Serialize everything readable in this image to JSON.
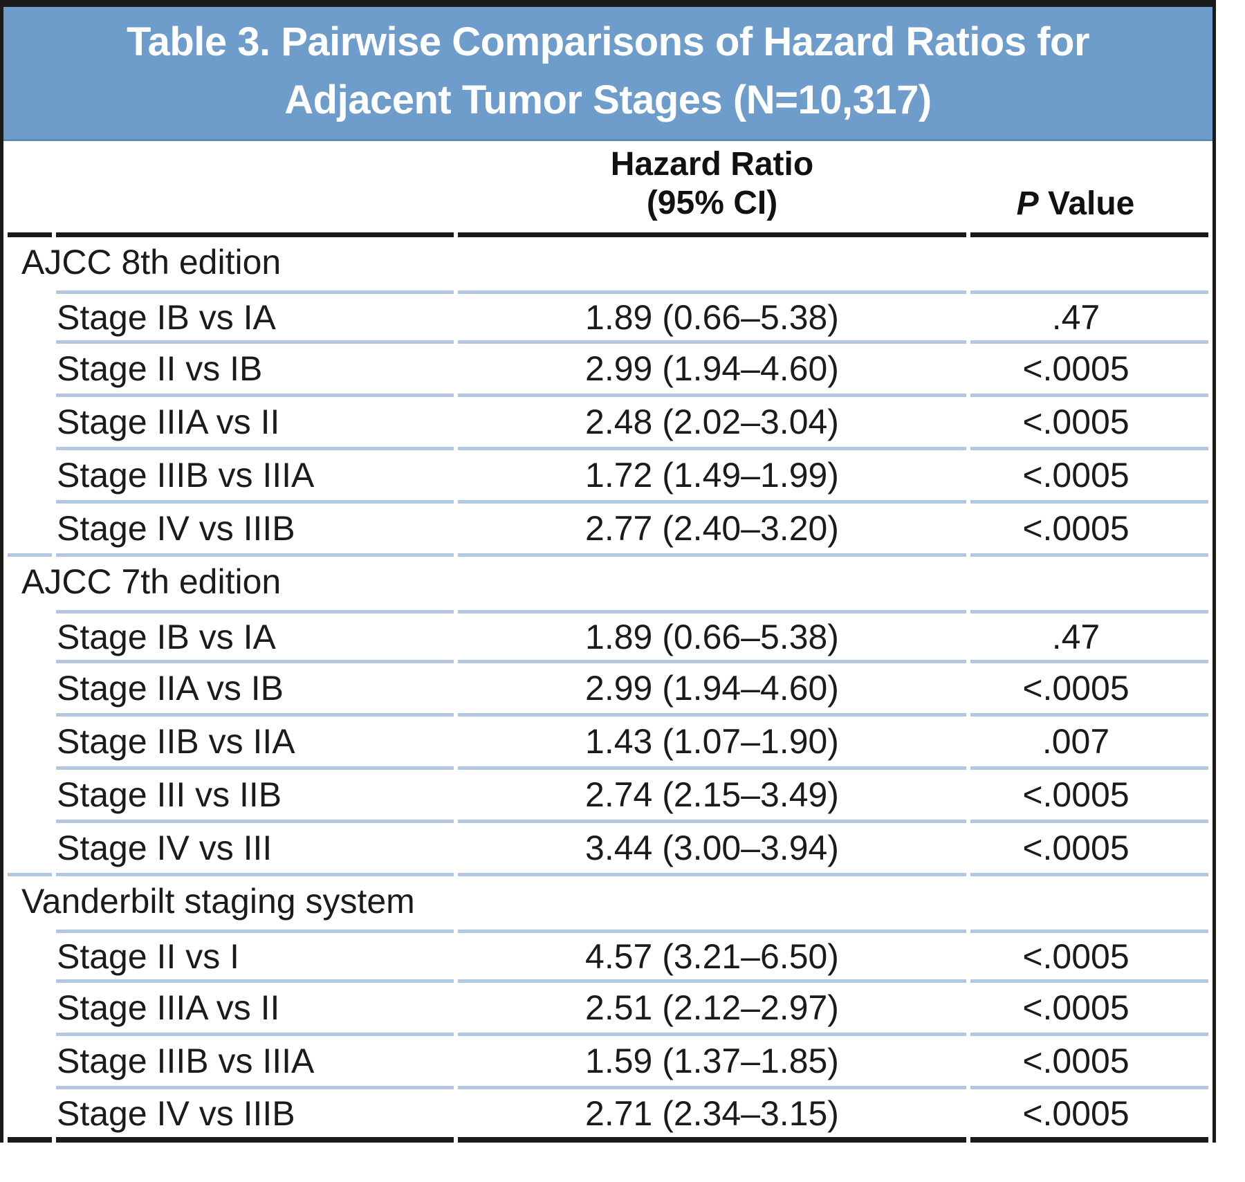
{
  "table": {
    "title_lines": [
      "Table 3. Pairwise Comparisons of Hazard Ratios for",
      "Adjacent Tumor Stages (N=10,317)"
    ],
    "columns": {
      "hazard_ratio_line1": "Hazard Ratio",
      "hazard_ratio_line2": "(95% CI)",
      "p_value_italic": "P",
      "p_value_rest": " Value"
    },
    "sections": [
      {
        "label": "AJCC 8th edition",
        "rows": [
          {
            "comparison": "Stage IB vs IA",
            "hazard_ratio": "1.89 (0.66–5.38)",
            "p_value": ".47"
          },
          {
            "comparison": "Stage II vs IB",
            "hazard_ratio": "2.99 (1.94–4.60)",
            "p_value": "<.0005"
          },
          {
            "comparison": "Stage IIIA vs II",
            "hazard_ratio": "2.48 (2.02–3.04)",
            "p_value": "<.0005"
          },
          {
            "comparison": "Stage IIIB vs IIIA",
            "hazard_ratio": "1.72 (1.49–1.99)",
            "p_value": "<.0005"
          },
          {
            "comparison": "Stage IV vs IIIB",
            "hazard_ratio": "2.77 (2.40–3.20)",
            "p_value": "<.0005"
          }
        ]
      },
      {
        "label": "AJCC 7th edition",
        "rows": [
          {
            "comparison": "Stage IB vs IA",
            "hazard_ratio": "1.89 (0.66–5.38)",
            "p_value": ".47"
          },
          {
            "comparison": "Stage IIA vs IB",
            "hazard_ratio": "2.99 (1.94–4.60)",
            "p_value": "<.0005"
          },
          {
            "comparison": "Stage IIB vs IIA",
            "hazard_ratio": "1.43 (1.07–1.90)",
            "p_value": ".007"
          },
          {
            "comparison": "Stage III vs IIB",
            "hazard_ratio": "2.74 (2.15–3.49)",
            "p_value": "<.0005"
          },
          {
            "comparison": "Stage IV vs III",
            "hazard_ratio": "3.44 (3.00–3.94)",
            "p_value": "<.0005"
          }
        ]
      },
      {
        "label": "Vanderbilt staging system",
        "rows": [
          {
            "comparison": "Stage II vs I",
            "hazard_ratio": "4.57 (3.21–6.50)",
            "p_value": "<.0005"
          },
          {
            "comparison": "Stage IIIA vs II",
            "hazard_ratio": "2.51 (2.12–2.97)",
            "p_value": "<.0005"
          },
          {
            "comparison": "Stage IIIB vs IIIA",
            "hazard_ratio": "1.59 (1.37–1.85)",
            "p_value": "<.0005"
          },
          {
            "comparison": "Stage IV vs IIIB",
            "hazard_ratio": "2.71 (2.34–3.15)",
            "p_value": "<.0005"
          }
        ]
      }
    ],
    "colors": {
      "banner_background": "#6f9dcb",
      "row_divider": "#b3c7e3",
      "rule": "#1a1a1a",
      "title_text": "#ffffff"
    }
  }
}
